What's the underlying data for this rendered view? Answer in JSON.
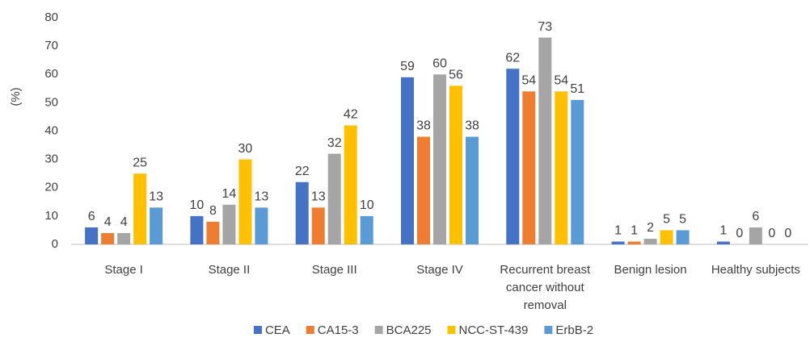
{
  "chart_data": {
    "type": "bar",
    "ylabel": "(%)",
    "categories": [
      "Stage I",
      "Stage II",
      "Stage III",
      "Stage IV",
      "Recurrent breast cancer without removal",
      "Benign lesion",
      "Healthy subjects"
    ],
    "series": [
      {
        "name": "CEA",
        "color": "#4472c4",
        "values": [
          6,
          10,
          22,
          59,
          62,
          1,
          1
        ]
      },
      {
        "name": "CA15-3",
        "color": "#ed7d31",
        "values": [
          4,
          8,
          13,
          38,
          54,
          1,
          0
        ]
      },
      {
        "name": "BCA225",
        "color": "#a5a5a5",
        "values": [
          4,
          14,
          32,
          60,
          73,
          2,
          6
        ]
      },
      {
        "name": "NCC-ST-439",
        "color": "#ffc000",
        "values": [
          25,
          30,
          42,
          56,
          54,
          5,
          0
        ]
      },
      {
        "name": "ErbB-2",
        "color": "#5b9bd5",
        "values": [
          13,
          13,
          10,
          38,
          51,
          5,
          0
        ]
      }
    ],
    "ylim": [
      0,
      80
    ],
    "yticks": [
      0,
      10,
      20,
      30,
      40,
      50,
      60,
      70,
      80
    ],
    "grid": false,
    "legend": "bottom"
  }
}
